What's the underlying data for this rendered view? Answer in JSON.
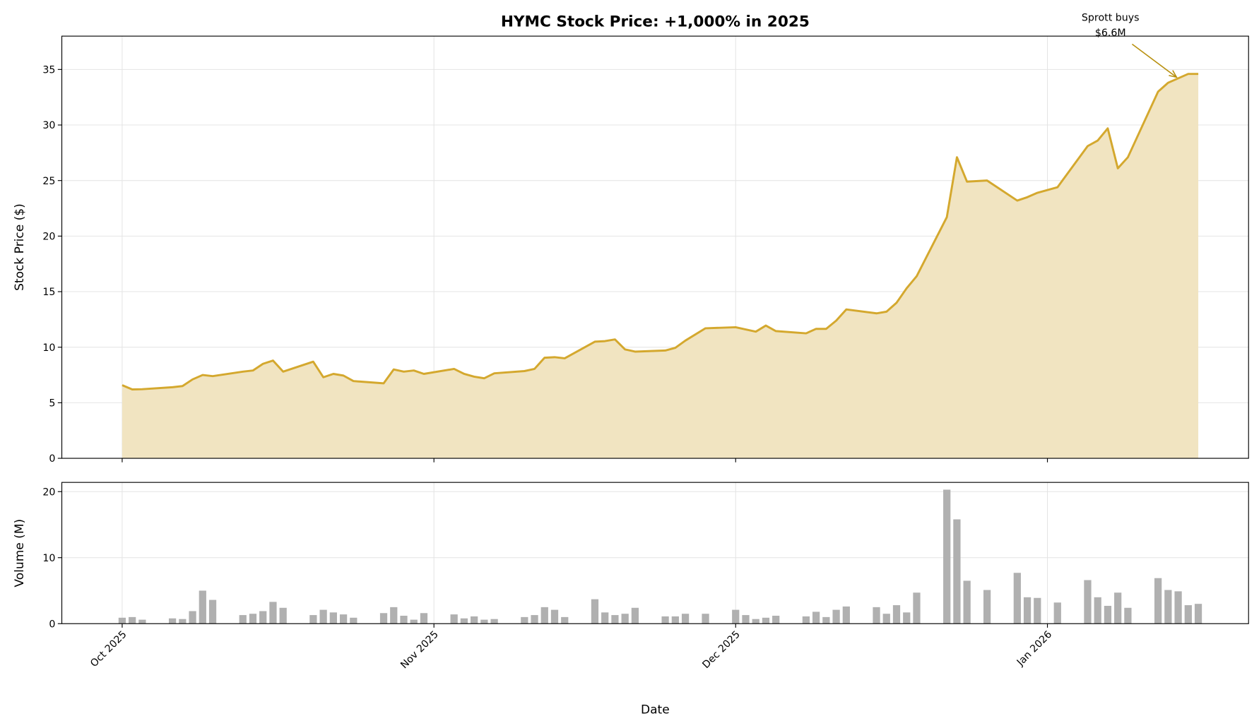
{
  "chart_data": [
    {
      "type": "area",
      "title": "HYMC Stock Price: +1,000% in 2025",
      "ylabel": "Stock Price ($)",
      "xlabel": "",
      "ylim": [
        0,
        38
      ],
      "xlim": [
        "2025-09-25",
        "2026-01-21"
      ],
      "yticks": [
        0,
        5,
        10,
        15,
        20,
        25,
        30,
        35
      ],
      "grid": true,
      "line_color": "#d4a82e",
      "fill_color": "#f1e4c1",
      "annotation": {
        "text_line1": "Sprott buys",
        "text_line2": "$6.6M",
        "x": "2026-01-14",
        "y": 34.3,
        "color": "#b8900f"
      },
      "x": [
        "2025-10-01",
        "2025-10-02",
        "2025-10-03",
        "2025-10-06",
        "2025-10-07",
        "2025-10-08",
        "2025-10-09",
        "2025-10-10",
        "2025-10-13",
        "2025-10-14",
        "2025-10-15",
        "2025-10-16",
        "2025-10-17",
        "2025-10-20",
        "2025-10-21",
        "2025-10-22",
        "2025-10-23",
        "2025-10-24",
        "2025-10-27",
        "2025-10-28",
        "2025-10-29",
        "2025-10-30",
        "2025-10-31",
        "2025-11-03",
        "2025-11-04",
        "2025-11-05",
        "2025-11-06",
        "2025-11-07",
        "2025-11-10",
        "2025-11-11",
        "2025-11-12",
        "2025-11-13",
        "2025-11-14",
        "2025-11-17",
        "2025-11-18",
        "2025-11-19",
        "2025-11-20",
        "2025-11-21",
        "2025-11-24",
        "2025-11-25",
        "2025-11-26",
        "2025-11-28",
        "2025-12-01",
        "2025-12-02",
        "2025-12-03",
        "2025-12-04",
        "2025-12-05",
        "2025-12-08",
        "2025-12-09",
        "2025-12-10",
        "2025-12-11",
        "2025-12-12",
        "2025-12-15",
        "2025-12-16",
        "2025-12-17",
        "2025-12-18",
        "2025-12-19",
        "2025-12-22",
        "2025-12-23",
        "2025-12-24",
        "2025-12-26",
        "2025-12-29",
        "2025-12-30",
        "2025-12-31",
        "2026-01-02",
        "2026-01-05",
        "2026-01-06",
        "2026-01-07",
        "2026-01-08",
        "2026-01-09",
        "2026-01-12",
        "2026-01-13",
        "2026-01-14",
        "2026-01-15",
        "2026-01-16"
      ],
      "values": [
        6.58,
        6.2,
        6.22,
        6.4,
        6.5,
        7.1,
        7.5,
        7.4,
        7.8,
        7.9,
        8.5,
        8.8,
        7.8,
        8.7,
        7.3,
        7.6,
        7.45,
        6.95,
        6.75,
        8.0,
        7.8,
        7.9,
        7.6,
        8.05,
        7.6,
        7.35,
        7.2,
        7.65,
        7.85,
        8.05,
        9.05,
        9.1,
        9.0,
        10.5,
        10.55,
        10.7,
        9.8,
        9.6,
        9.7,
        9.95,
        10.6,
        11.7,
        11.8,
        11.6,
        11.4,
        11.95,
        11.45,
        11.25,
        11.65,
        11.65,
        12.4,
        13.4,
        13.05,
        13.2,
        14.0,
        15.3,
        16.4,
        21.7,
        27.1,
        24.9,
        25.0,
        23.2,
        23.5,
        23.9,
        24.4,
        28.1,
        28.6,
        29.7,
        26.1,
        27.1,
        33.0,
        33.8,
        34.2,
        34.6,
        34.6
      ]
    },
    {
      "type": "bar",
      "ylabel": "Volume (M)",
      "xlabel": "Date",
      "ylim": [
        0,
        21.4
      ],
      "yticks": [
        0,
        10,
        20
      ],
      "grid": true,
      "bar_color": "#b0b0b0",
      "xtick_dates": [
        "2025-10-01",
        "2025-11-01",
        "2025-12-01",
        "2026-01-01"
      ],
      "xtick_labels": [
        "Oct 2025",
        "Nov 2025",
        "Dec 2025",
        "Jan 2026"
      ],
      "values": [
        0.9,
        1.0,
        0.6,
        0.8,
        0.7,
        1.9,
        5.0,
        3.6,
        1.3,
        1.5,
        1.9,
        3.3,
        2.4,
        1.3,
        2.1,
        1.7,
        1.4,
        0.9,
        1.6,
        2.5,
        1.2,
        0.6,
        1.6,
        1.4,
        0.8,
        1.1,
        0.6,
        0.7,
        1.0,
        1.3,
        2.5,
        2.1,
        1.0,
        3.7,
        1.7,
        1.3,
        1.5,
        2.4,
        1.1,
        1.1,
        1.5,
        1.5,
        2.1,
        1.3,
        0.7,
        0.9,
        1.2,
        1.1,
        1.8,
        1.0,
        2.1,
        2.6,
        2.5,
        1.5,
        2.8,
        1.7,
        4.7,
        20.3,
        15.8,
        6.5,
        5.1,
        7.7,
        4.0,
        3.9,
        3.2,
        6.6,
        4.0,
        2.7,
        4.7,
        2.4,
        6.9,
        5.1,
        4.9,
        2.8,
        3.0
      ]
    }
  ]
}
